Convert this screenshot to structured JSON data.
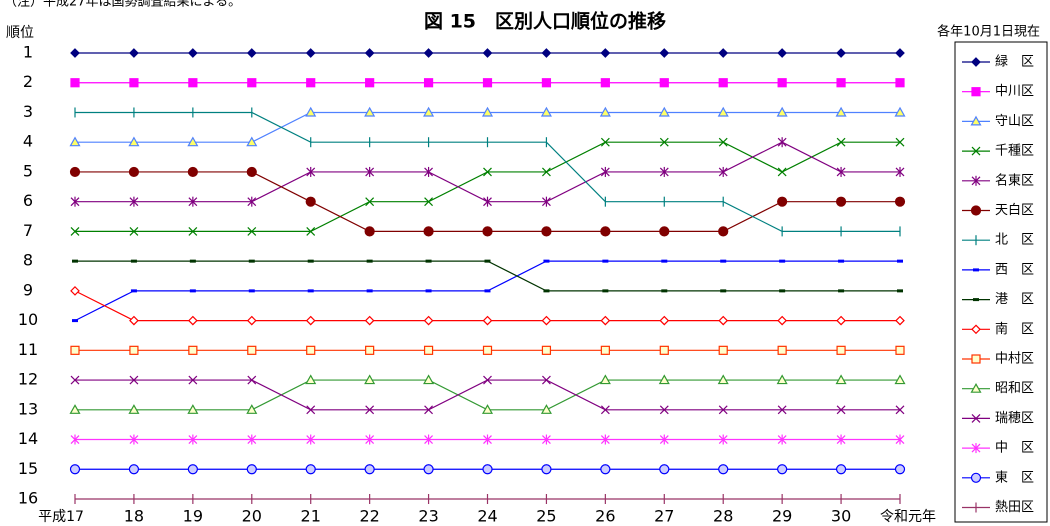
{
  "chart_data": {
    "type": "line",
    "note": "（注）平成27年は国勢調査結果による。",
    "title": "図 15　区別人口順位の推移",
    "subtitle": "各年10月1日現在",
    "y_label": "順位",
    "categories": [
      "平成17",
      "18",
      "19",
      "20",
      "21",
      "22",
      "23",
      "24",
      "25",
      "26",
      "27",
      "28",
      "29",
      "30",
      "令和元年"
    ],
    "ylim": [
      16,
      1
    ],
    "y_inverted": true,
    "yticks": [
      1,
      2,
      3,
      4,
      5,
      6,
      7,
      8,
      9,
      10,
      11,
      12,
      13,
      14,
      15,
      16
    ],
    "legend": "right",
    "series": [
      {
        "name": "緑　区",
        "color": "#000080",
        "marker": "diamond",
        "marker_fill": "#000080",
        "values": [
          1,
          1,
          1,
          1,
          1,
          1,
          1,
          1,
          1,
          1,
          1,
          1,
          1,
          1,
          1
        ]
      },
      {
        "name": "中川区",
        "color": "#ff00ff",
        "marker": "square",
        "marker_fill": "#ff00ff",
        "values": [
          2,
          2,
          2,
          2,
          2,
          2,
          2,
          2,
          2,
          2,
          2,
          2,
          2,
          2,
          2
        ]
      },
      {
        "name": "守山区",
        "color": "#4f81ff",
        "marker": "triangle",
        "marker_fill": "#ffff66",
        "values": [
          4,
          4,
          4,
          4,
          3,
          3,
          3,
          3,
          3,
          3,
          3,
          3,
          3,
          3,
          3
        ]
      },
      {
        "name": "千種区",
        "color": "#008000",
        "marker": "x",
        "marker_fill": "none",
        "values": [
          7,
          7,
          7,
          7,
          7,
          6,
          6,
          5,
          5,
          4,
          4,
          4,
          5,
          4,
          4
        ]
      },
      {
        "name": "名東区",
        "color": "#800080",
        "marker": "asterisk",
        "marker_fill": "none",
        "values": [
          6,
          6,
          6,
          6,
          5,
          5,
          5,
          6,
          6,
          5,
          5,
          5,
          4,
          5,
          5
        ]
      },
      {
        "name": "天白区",
        "color": "#800000",
        "marker": "circle",
        "marker_fill": "#800000",
        "values": [
          5,
          5,
          5,
          5,
          6,
          7,
          7,
          7,
          7,
          7,
          7,
          7,
          6,
          6,
          6
        ]
      },
      {
        "name": "北　区",
        "color": "#008080",
        "marker": "plus",
        "marker_fill": "none",
        "values": [
          3,
          3,
          3,
          3,
          4,
          4,
          4,
          4,
          4,
          6,
          6,
          6,
          7,
          7,
          7
        ]
      },
      {
        "name": "西　区",
        "color": "#0000ff",
        "marker": "dash",
        "marker_fill": "none",
        "values": [
          10,
          9,
          9,
          9,
          9,
          9,
          9,
          9,
          8,
          8,
          8,
          8,
          8,
          8,
          8
        ]
      },
      {
        "name": "港　区",
        "color": "#003300",
        "marker": "dash",
        "marker_fill": "none",
        "values": [
          8,
          8,
          8,
          8,
          8,
          8,
          8,
          8,
          9,
          9,
          9,
          9,
          9,
          9,
          9
        ]
      },
      {
        "name": "南　区",
        "color": "#ff0000",
        "marker": "diamond",
        "marker_fill": "#ffffff",
        "values": [
          9,
          10,
          10,
          10,
          10,
          10,
          10,
          10,
          10,
          10,
          10,
          10,
          10,
          10,
          10
        ]
      },
      {
        "name": "中村区",
        "color": "#ff3300",
        "marker": "square",
        "marker_fill": "#ffffcc",
        "values": [
          11,
          11,
          11,
          11,
          11,
          11,
          11,
          11,
          11,
          11,
          11,
          11,
          11,
          11,
          11
        ]
      },
      {
        "name": "昭和区",
        "color": "#339933",
        "marker": "triangle",
        "marker_fill": "#ffffcc",
        "values": [
          13,
          13,
          13,
          13,
          12,
          12,
          12,
          13,
          13,
          12,
          12,
          12,
          12,
          12,
          12
        ]
      },
      {
        "name": "瑞穂区",
        "color": "#800080",
        "marker": "x",
        "marker_fill": "none",
        "values": [
          12,
          12,
          12,
          12,
          13,
          13,
          13,
          12,
          12,
          13,
          13,
          13,
          13,
          13,
          13
        ]
      },
      {
        "name": "中　区",
        "color": "#ff33ff",
        "marker": "asterisk",
        "marker_fill": "none",
        "values": [
          14,
          14,
          14,
          14,
          14,
          14,
          14,
          14,
          14,
          14,
          14,
          14,
          14,
          14,
          14
        ]
      },
      {
        "name": "東　区",
        "color": "#0000ff",
        "marker": "circle",
        "marker_fill": "#ccccff",
        "values": [
          15,
          15,
          15,
          15,
          15,
          15,
          15,
          15,
          15,
          15,
          15,
          15,
          15,
          15,
          15
        ]
      },
      {
        "name": "熱田区",
        "color": "#993366",
        "marker": "plus",
        "marker_fill": "none",
        "values": [
          16,
          16,
          16,
          16,
          16,
          16,
          16,
          16,
          16,
          16,
          16,
          16,
          16,
          16,
          16
        ]
      }
    ]
  }
}
